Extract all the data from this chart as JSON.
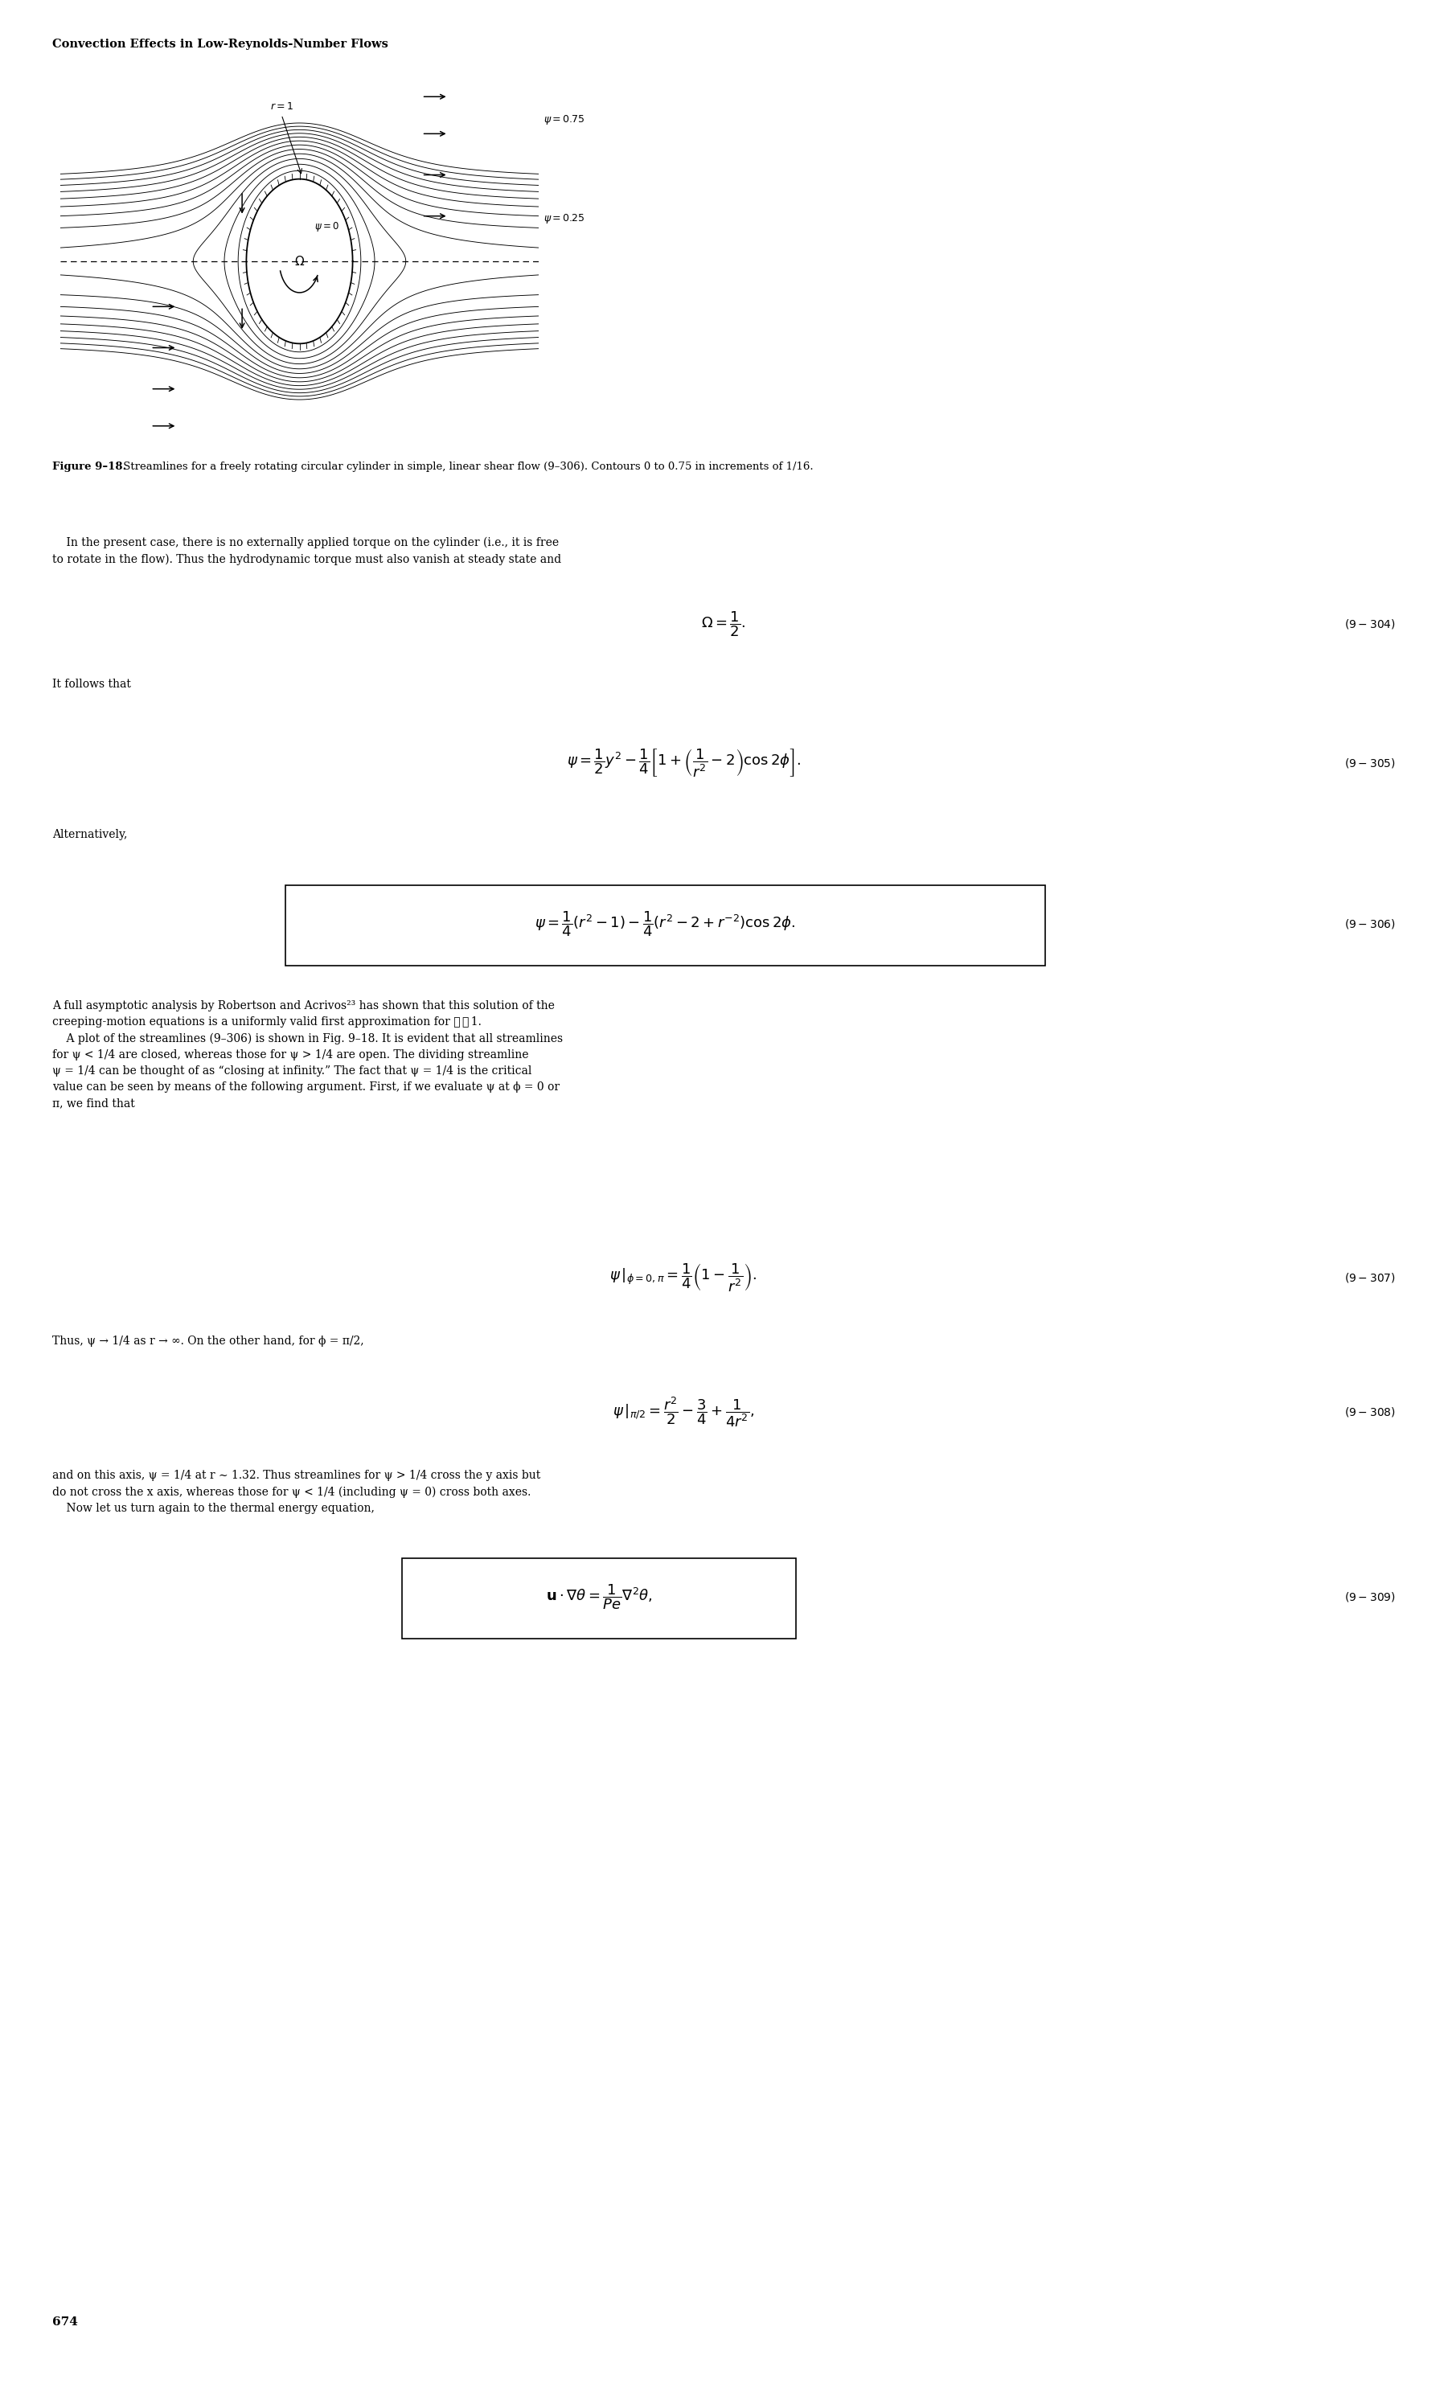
{
  "header": "Convection Effects in Low-Reynolds-Number Flows",
  "figure_label": "Figure 9–18.",
  "figure_caption": " Streamlines for a freely rotating circular cylinder in simple, linear shear flow (9–306). Contours 0 to 0.75 in increments of 1/16.",
  "r1_label": "r = 1",
  "psi0_label": "ψ = 0",
  "omega_label": "Ω",
  "psi075_label": "ψ = 0.75",
  "psi025_label": "ψ = 0.25",
  "contour_levels": [
    0.0,
    0.0625,
    0.125,
    0.1875,
    0.25,
    0.3125,
    0.375,
    0.4375,
    0.5,
    0.5625,
    0.625,
    0.6875,
    0.75
  ],
  "page_number": "674",
  "background_color": "#ffffff",
  "line_color": "#000000"
}
